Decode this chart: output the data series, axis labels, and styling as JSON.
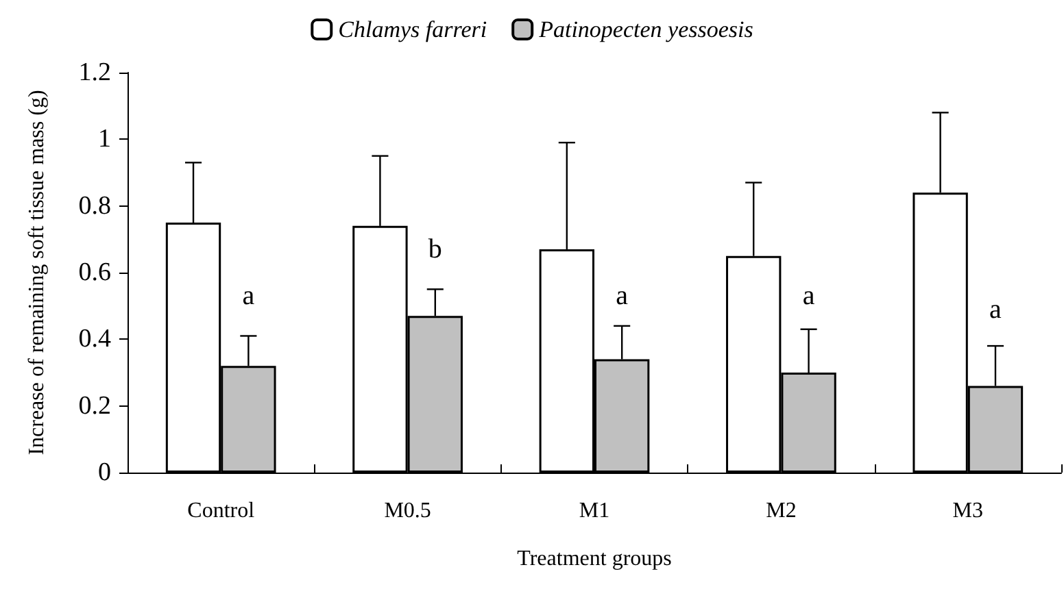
{
  "chart_data": {
    "type": "bar",
    "xlabel": "Treatment groups",
    "ylabel": "Increase of remaining soft tissue mass (g)",
    "categories": [
      "Control",
      "M0.5",
      "M1",
      "M2",
      "M3"
    ],
    "series": [
      {
        "name": "Chlamys farreri",
        "color": "#ffffff",
        "values": [
          0.75,
          0.74,
          0.67,
          0.65,
          0.84
        ],
        "errors": [
          [
            0.75,
            0.93
          ],
          [
            0.74,
            0.95
          ],
          [
            0.67,
            0.99
          ],
          [
            0.65,
            0.87
          ],
          [
            0.84,
            1.08
          ]
        ]
      },
      {
        "name": "Patinopecten yessoesis",
        "color": "#c0c0c0",
        "values": [
          0.32,
          0.47,
          0.34,
          0.3,
          0.26
        ],
        "errors": [
          [
            0.32,
            0.41
          ],
          [
            0.47,
            0.55
          ],
          [
            0.34,
            0.44
          ],
          [
            0.3,
            0.43
          ],
          [
            0.26,
            0.38
          ]
        ]
      }
    ],
    "annotations": [
      {
        "text": "a",
        "x": "Control",
        "y": 0.53
      },
      {
        "text": "b",
        "x": "M0.5",
        "y": 0.67
      },
      {
        "text": "a",
        "x": "M1",
        "y": 0.53
      },
      {
        "text": "a",
        "x": "M2",
        "y": 0.53
      },
      {
        "text": "a",
        "x": "M3",
        "y": 0.49
      }
    ],
    "ylim": [
      0,
      1.2
    ],
    "yticks": [
      0,
      0.2,
      0.4,
      0.6,
      0.8,
      1,
      1.2
    ],
    "grid": false,
    "legend": "top"
  }
}
